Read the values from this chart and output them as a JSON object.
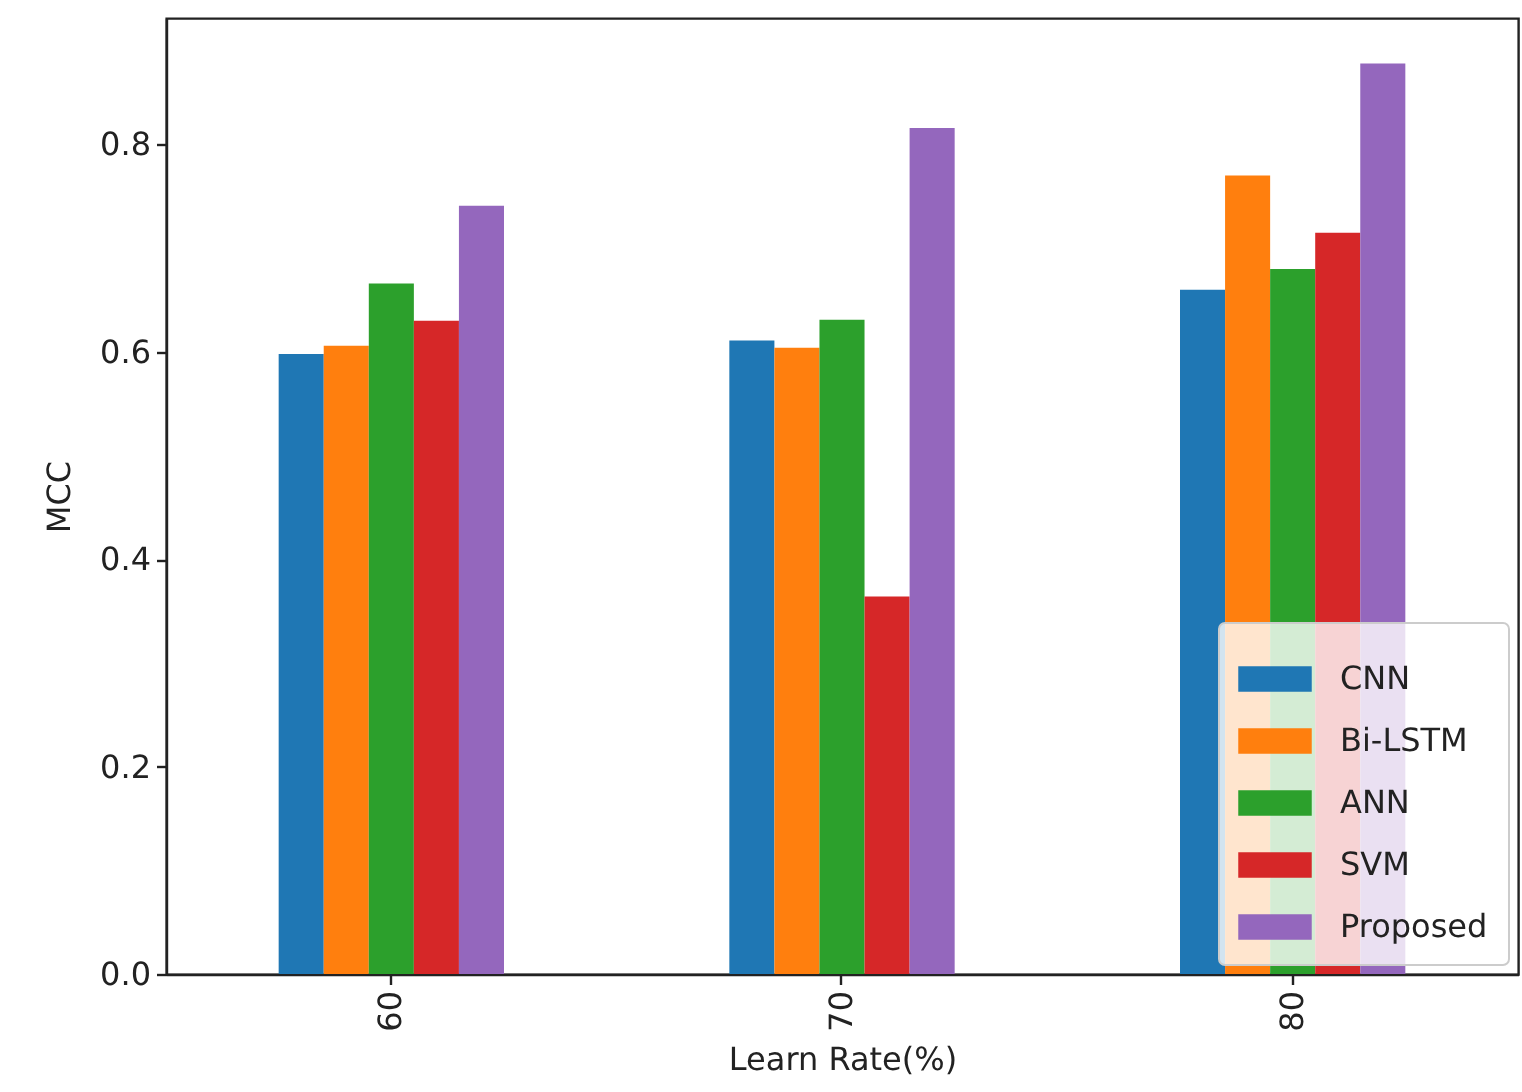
{
  "chart_data": {
    "type": "bar",
    "xlabel": "Learn Rate(%)",
    "ylabel": "MCC",
    "categories": [
      "60",
      "70",
      "80"
    ],
    "series": [
      {
        "name": "CNN",
        "color": "#1f77b4",
        "values": [
          0.598,
          0.611,
          0.66
        ]
      },
      {
        "name": "Bi-LSTM",
        "color": "#ff7f0e",
        "values": [
          0.606,
          0.604,
          0.77
        ]
      },
      {
        "name": "ANN",
        "color": "#2ca02c",
        "values": [
          0.666,
          0.631,
          0.68
        ]
      },
      {
        "name": "SVM",
        "color": "#d62728",
        "values": [
          0.63,
          0.364,
          0.715
        ]
      },
      {
        "name": "Proposed",
        "color": "#9467bd",
        "values": [
          0.741,
          0.816,
          0.878
        ]
      }
    ],
    "ylim": [
      0,
      0.922
    ],
    "yticks": [
      {
        "value": 0,
        "label": "0.0"
      },
      0.2,
      0.4,
      0.6,
      0.8
    ],
    "legend": "bottom right"
  }
}
